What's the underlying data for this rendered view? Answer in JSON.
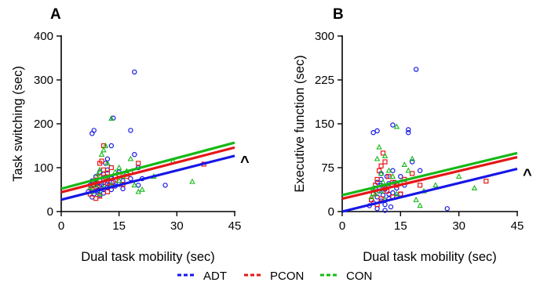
{
  "chart_data": [
    {
      "type": "scatter",
      "panel_label": "A",
      "xlabel": "Dual task mobility (sec)",
      "ylabel": "Task switching (sec)",
      "xlim": [
        0,
        45
      ],
      "ylim": [
        0,
        400
      ],
      "xticks": [
        "0",
        "15",
        "30",
        "45"
      ],
      "yticks": [
        "0",
        "100",
        "200",
        "300",
        "400"
      ],
      "xtick_values": [
        0,
        15,
        30,
        45
      ],
      "ytick_values": [
        0,
        100,
        200,
        300,
        400
      ],
      "grid": false,
      "annotation": "^",
      "fit_lines": [
        {
          "name": "ADT",
          "y_at_0": 27,
          "y_at_45": 127
        },
        {
          "name": "PCON",
          "y_at_0": 44,
          "y_at_45": 146
        },
        {
          "name": "CON",
          "y_at_0": 52,
          "y_at_45": 157
        }
      ],
      "series": [
        {
          "name": "ADT",
          "marker": "circle",
          "points": [
            [
              7,
              45
            ],
            [
              7.5,
              60
            ],
            [
              8,
              52
            ],
            [
              8,
              70
            ],
            [
              8.5,
              40
            ],
            [
              9,
              55
            ],
            [
              9,
              65
            ],
            [
              9,
              80
            ],
            [
              9.5,
              48
            ],
            [
              10,
              58
            ],
            [
              10,
              72
            ],
            [
              10,
              90
            ],
            [
              10.5,
              62
            ],
            [
              11,
              50
            ],
            [
              11,
              66
            ],
            [
              11,
              85
            ],
            [
              11.5,
              110
            ],
            [
              12,
              55
            ],
            [
              12,
              70
            ],
            [
              12,
              95
            ],
            [
              12.5,
              60
            ],
            [
              13,
              75
            ],
            [
              13,
              50
            ],
            [
              13.5,
              68
            ],
            [
              14,
              58
            ],
            [
              14,
              80
            ],
            [
              15,
              62
            ],
            [
              15,
              90
            ],
            [
              16,
              70
            ],
            [
              17,
              85
            ],
            [
              18,
              185
            ],
            [
              18,
              75
            ],
            [
              19,
              318
            ],
            [
              19,
              130
            ],
            [
              20,
              60
            ],
            [
              20,
              100
            ],
            [
              21,
              75
            ],
            [
              27,
              60
            ],
            [
              8,
              178
            ],
            [
              8.5,
              185
            ],
            [
              12,
              120
            ],
            [
              13,
              150
            ],
            [
              13.5,
              213
            ],
            [
              11,
              42
            ],
            [
              10,
              38
            ],
            [
              9.5,
              44
            ],
            [
              8,
              33
            ],
            [
              16,
              52
            ]
          ]
        },
        {
          "name": "PCON",
          "marker": "square",
          "points": [
            [
              7.5,
              40
            ],
            [
              8,
              50
            ],
            [
              8.5,
              62
            ],
            [
              9,
              72
            ],
            [
              9.5,
              55
            ],
            [
              10,
              80
            ],
            [
              10,
              110
            ],
            [
              10.5,
              115
            ],
            [
              11,
              150
            ],
            [
              11,
              95
            ],
            [
              11.5,
              78
            ],
            [
              12,
              65
            ],
            [
              12,
              88
            ],
            [
              13,
              58
            ],
            [
              13,
              100
            ],
            [
              14,
              72
            ],
            [
              15,
              85
            ],
            [
              16,
              62
            ],
            [
              17,
              80
            ],
            [
              18,
              90
            ],
            [
              20,
              110
            ],
            [
              37,
              108
            ],
            [
              9,
              30
            ],
            [
              10,
              35
            ],
            [
              12,
              45
            ]
          ]
        },
        {
          "name": "CON",
          "marker": "triangle",
          "points": [
            [
              7.5,
              55
            ],
            [
              8,
              45
            ],
            [
              9,
              70
            ],
            [
              9.5,
              85
            ],
            [
              10,
              95
            ],
            [
              10.5,
              130
            ],
            [
              11,
              140
            ],
            [
              11.5,
              150
            ],
            [
              12,
              110
            ],
            [
              12,
              75
            ],
            [
              13,
              60
            ],
            [
              13,
              212
            ],
            [
              14,
              90
            ],
            [
              15,
              100
            ],
            [
              15,
              70
            ],
            [
              16,
              80
            ],
            [
              17,
              92
            ],
            [
              18,
              120
            ],
            [
              19,
              60
            ],
            [
              20,
              45
            ],
            [
              21,
              50
            ],
            [
              24,
              80
            ],
            [
              29,
              115
            ],
            [
              34,
              68
            ],
            [
              10,
              40
            ],
            [
              11,
              55
            ],
            [
              9,
              60
            ]
          ]
        }
      ]
    },
    {
      "type": "scatter",
      "panel_label": "B",
      "xlabel": "Dual task mobility (sec)",
      "ylabel": "Executive function (sec)",
      "xlim": [
        0,
        45
      ],
      "ylim": [
        0,
        300
      ],
      "xticks": [
        "0",
        "15",
        "30",
        "45"
      ],
      "yticks": [
        "0",
        "75",
        "150",
        "225",
        "300"
      ],
      "xtick_values": [
        0,
        15,
        30,
        45
      ],
      "ytick_values": [
        0,
        75,
        150,
        225,
        300
      ],
      "grid": false,
      "annotation": "^",
      "fit_lines": [
        {
          "name": "ADT",
          "y_at_0": 0,
          "y_at_45": 73
        },
        {
          "name": "PCON",
          "y_at_0": 22,
          "y_at_45": 93
        },
        {
          "name": "CON",
          "y_at_0": 28,
          "y_at_45": 100
        }
      ],
      "series": [
        {
          "name": "ADT",
          "marker": "circle",
          "points": [
            [
              7,
              10
            ],
            [
              7.5,
              20
            ],
            [
              8,
              30
            ],
            [
              8,
              15
            ],
            [
              8.5,
              40
            ],
            [
              9,
              25
            ],
            [
              9,
              5
            ],
            [
              9.5,
              35
            ],
            [
              10,
              18
            ],
            [
              10,
              45
            ],
            [
              10,
              55
            ],
            [
              10.5,
              28
            ],
            [
              11,
              12
            ],
            [
              11,
              38
            ],
            [
              11.5,
              60
            ],
            [
              12,
              22
            ],
            [
              12,
              48
            ],
            [
              12.5,
              8
            ],
            [
              13,
              32
            ],
            [
              13,
              70
            ],
            [
              13.5,
              50
            ],
            [
              14,
              25
            ],
            [
              14,
              40
            ],
            [
              15,
              30
            ],
            [
              15,
              60
            ],
            [
              16,
              45
            ],
            [
              17,
              140
            ],
            [
              17,
              135
            ],
            [
              18,
              85
            ],
            [
              19,
              243
            ],
            [
              20,
              70
            ],
            [
              27,
              5
            ],
            [
              8,
              135
            ],
            [
              9,
              138
            ],
            [
              13,
              148
            ],
            [
              11,
              2
            ],
            [
              10,
              65
            ],
            [
              9,
              50
            ],
            [
              12,
              30
            ]
          ]
        },
        {
          "name": "PCON",
          "marker": "square",
          "points": [
            [
              7.5,
              20
            ],
            [
              8,
              30
            ],
            [
              8.5,
              45
            ],
            [
              9,
              55
            ],
            [
              9.5,
              70
            ],
            [
              10,
              78
            ],
            [
              10.5,
              100
            ],
            [
              11,
              85
            ],
            [
              11,
              40
            ],
            [
              11.5,
              35
            ],
            [
              12,
              60
            ],
            [
              13,
              25
            ],
            [
              13,
              50
            ],
            [
              14,
              45
            ],
            [
              15,
              30
            ],
            [
              16,
              55
            ],
            [
              18,
              65
            ],
            [
              20,
              45
            ],
            [
              37,
              52
            ],
            [
              9,
              12
            ],
            [
              10,
              22
            ]
          ]
        },
        {
          "name": "CON",
          "marker": "triangle",
          "points": [
            [
              7.5,
              25
            ],
            [
              8,
              40
            ],
            [
              8.5,
              30
            ],
            [
              9,
              90
            ],
            [
              9.5,
              110
            ],
            [
              10,
              65
            ],
            [
              10.5,
              50
            ],
            [
              11,
              95
            ],
            [
              12,
              70
            ],
            [
              12,
              45
            ],
            [
              13,
              60
            ],
            [
              14,
              145
            ],
            [
              14,
              30
            ],
            [
              15,
              50
            ],
            [
              16,
              80
            ],
            [
              17,
              70
            ],
            [
              18,
              90
            ],
            [
              19,
              20
            ],
            [
              20,
              10
            ],
            [
              21,
              35
            ],
            [
              24,
              45
            ],
            [
              30,
              60
            ],
            [
              34,
              40
            ],
            [
              10,
              35
            ],
            [
              11,
              20
            ]
          ]
        }
      ]
    }
  ],
  "legend": {
    "placement": "bottom-center",
    "entries": [
      {
        "label": "ADT",
        "color": "#1616e6"
      },
      {
        "label": "PCON",
        "color": "#e61616"
      },
      {
        "label": "CON",
        "color": "#16b816"
      }
    ]
  },
  "colors": {
    "ADT": "#1616e6",
    "PCON": "#e61616",
    "CON": "#16b816"
  }
}
